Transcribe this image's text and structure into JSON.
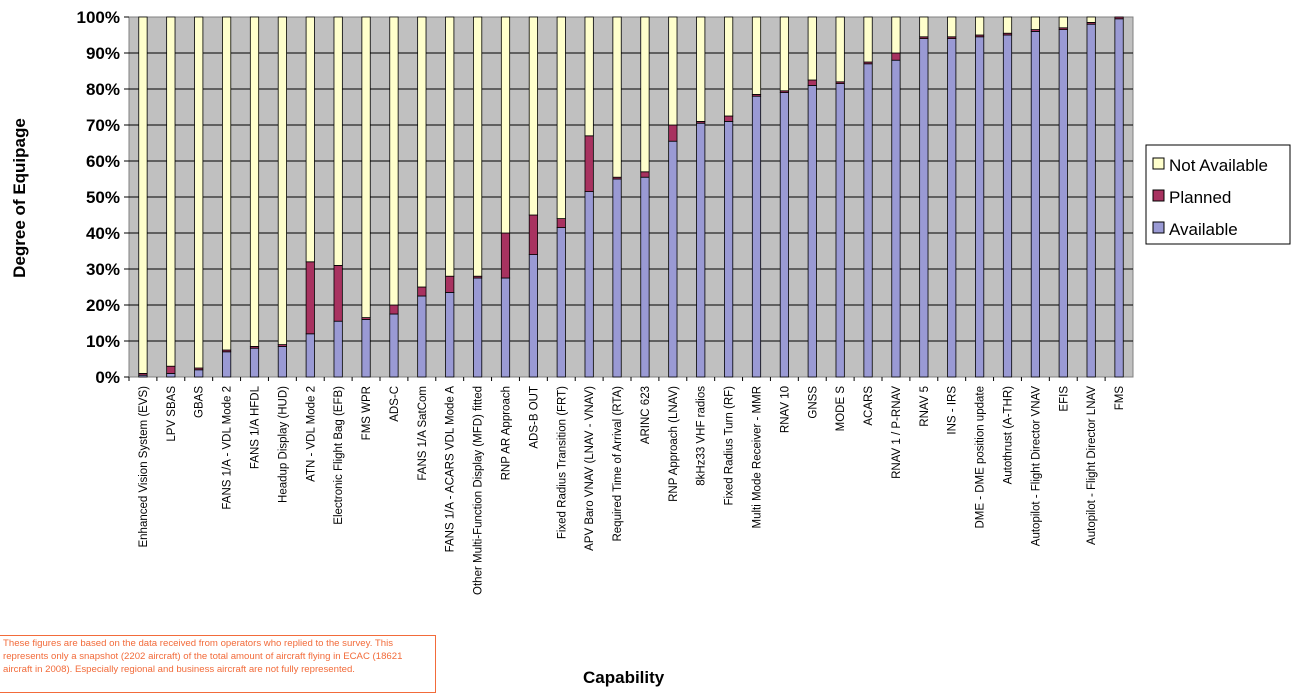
{
  "chart_data": {
    "type": "bar",
    "stacked": true,
    "percent": true,
    "ylabel": "Degree of Equipage",
    "xlabel": "Capability",
    "ylim": [
      0,
      100
    ],
    "yticks": [
      "0%",
      "10%",
      "20%",
      "30%",
      "40%",
      "50%",
      "60%",
      "70%",
      "80%",
      "90%",
      "100%"
    ],
    "grid": true,
    "legend_position": "right",
    "categories": [
      "Enhanced Vision System (EVS)",
      "LPV SBAS",
      "GBAS",
      "FANS 1/A - VDL Mode 2",
      "FANS 1/A HFDL",
      "Headup Display (HUD)",
      "ATN - VDL Mode 2",
      "Electronic Flight Bag (EFB)",
      "FMS WPR",
      "ADS-C",
      "FANS 1/A SatCom",
      "FANS 1/A - ACARS VDL Mode A",
      "Other Multi-Function Display (MFD) fitted",
      "RNP AR Approach",
      "ADS-B OUT",
      "Fixed Radius Transition (FRT)",
      "APV Baro VNAV (LNAV - VNAV)",
      "Required Time of Arrival (RTA)",
      "ARINC 623",
      "RNP Approach (LNAV)",
      "8kHz33 VHF radios",
      "Fixed Radius Turn (RF)",
      "Multi Mode Receiver - MMR",
      "RNAV 10",
      "GNSS",
      "MODE S",
      "ACARS",
      "RNAV 1 / P-RNAV",
      "RNAV 5",
      "INS - IRS",
      "DME - DME position update",
      "Autothrust (A-THR)",
      "Autopilot - Flight Director VNAV",
      "EFIS",
      "Autopilot - Flight Director LNAV",
      "FMS"
    ],
    "series": [
      {
        "name": "Available",
        "color": "#9a9ad4",
        "values": [
          0.5,
          1,
          2,
          7,
          8,
          8.5,
          12,
          15.5,
          16,
          17.5,
          22.5,
          23.5,
          27.5,
          27.5,
          34,
          41.5,
          51.5,
          55,
          55.5,
          65.5,
          70.5,
          71,
          78,
          79,
          81,
          81.5,
          87,
          88,
          94,
          94,
          94.5,
          95,
          96,
          96.5,
          98,
          99.5
        ]
      },
      {
        "name": "Planned",
        "color": "#a83260",
        "values": [
          0.5,
          2,
          0.5,
          0.5,
          0.5,
          0.5,
          20,
          15.5,
          0.5,
          2.5,
          2.5,
          4.5,
          0.5,
          12.5,
          11,
          2.5,
          15.5,
          0.5,
          1.5,
          4.5,
          0.5,
          1.5,
          0.5,
          0.5,
          1.5,
          0.5,
          0.5,
          2,
          0.5,
          0.5,
          0.5,
          0.5,
          0.5,
          0.5,
          0.5,
          0.5
        ]
      },
      {
        "name": "Not Available",
        "color": "#ffffcc",
        "values": [
          99,
          97,
          97.5,
          92.5,
          91.5,
          91,
          68,
          69,
          83.5,
          80,
          75,
          72,
          72,
          60,
          55,
          56,
          33,
          44.5,
          43,
          30,
          29,
          27.5,
          21.5,
          20.5,
          17.5,
          18,
          12.5,
          10,
          5.5,
          5.5,
          5,
          4.5,
          3.5,
          3,
          1.5,
          0
        ]
      }
    ],
    "legend": [
      "Not Available",
      "Planned",
      "Available"
    ]
  },
  "note": {
    "text": "These figures are based on the data received from operators who replied to the survey. This represents only a snapshot (2202 aircraft) of the total amount of aircraft flying in ECAC (18621 aircraft in 2008). Especially regional and business aircraft are not fully represented."
  }
}
